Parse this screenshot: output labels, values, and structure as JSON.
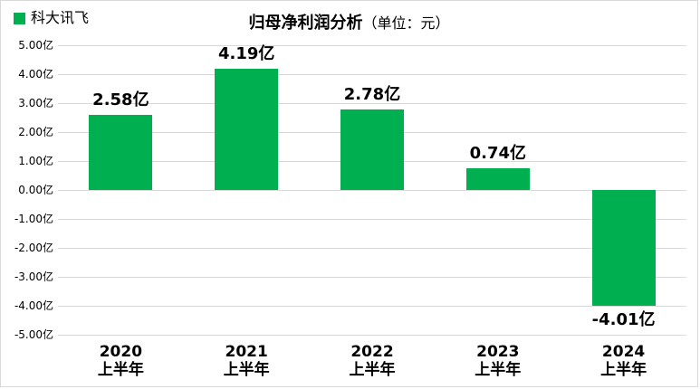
{
  "legend": {
    "label": "科大讯飞",
    "color": "#00B050"
  },
  "title": {
    "main": "归母净利润分析",
    "suffix": "（单位：元）"
  },
  "chart_data": {
    "type": "bar",
    "title": "归母净利润分析（单位：元）",
    "unit": "亿",
    "categories": [
      "2020",
      "2021",
      "2022",
      "2023",
      "2024"
    ],
    "category_sublabel": "上半年",
    "series": [
      {
        "name": "科大讯飞",
        "values": [
          2.58,
          4.19,
          2.78,
          0.74,
          -4.01
        ],
        "labels": [
          "2.58亿",
          "4.19亿",
          "2.78亿",
          "0.74亿",
          "-4.01亿"
        ],
        "color": "#00B050"
      }
    ],
    "xlabel": "",
    "ylabel": "",
    "ylim": [
      -5,
      5
    ],
    "yticks": [
      {
        "value": 5,
        "label": "5.00亿"
      },
      {
        "value": 4,
        "label": "4.00亿"
      },
      {
        "value": 3,
        "label": "3.00亿"
      },
      {
        "value": 2,
        "label": "2.00亿"
      },
      {
        "value": 1,
        "label": "1.00亿"
      },
      {
        "value": 0,
        "label": "0.00亿"
      },
      {
        "value": -1,
        "label": "-1.00亿"
      },
      {
        "value": -2,
        "label": "-2.00亿"
      },
      {
        "value": -3,
        "label": "-3.00亿"
      },
      {
        "value": -4,
        "label": "-4.00亿"
      },
      {
        "value": -5,
        "label": "-5.00亿"
      }
    ],
    "grid": true,
    "gridline_color": "#d9d9d9",
    "legend_position": "top-left"
  }
}
